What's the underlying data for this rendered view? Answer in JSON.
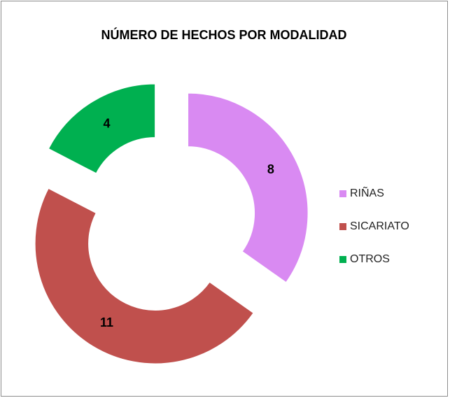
{
  "chart_data": {
    "type": "doughnut",
    "title": "NÚMERO DE HECHOS POR MODALIDAD",
    "categories": [
      "RIÑAS",
      "SICARIATO",
      "OTROS"
    ],
    "values": [
      8,
      11,
      4
    ],
    "colors": [
      "#d98af2",
      "#c0504d",
      "#00b050"
    ],
    "legend": "right"
  }
}
